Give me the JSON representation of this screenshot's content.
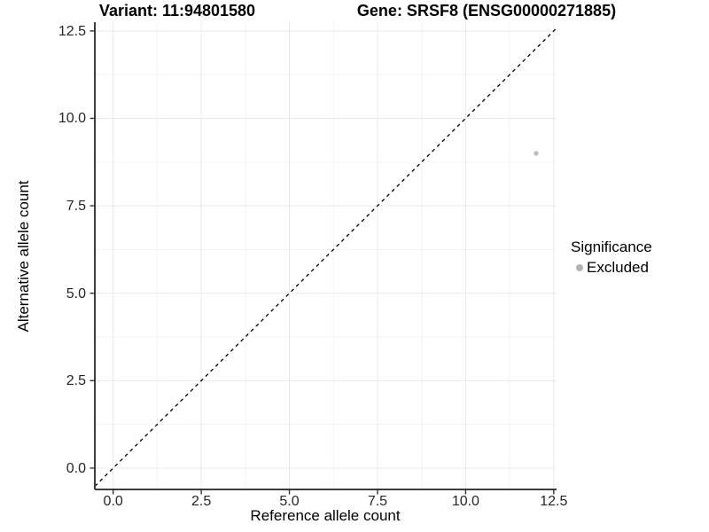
{
  "chart_data": {
    "type": "scatter",
    "titles": {
      "variant": "Variant: 11:94801580",
      "gene": "Gene: SRSF8 (ENSG00000271885)"
    },
    "xlabel": "Reference allele count",
    "ylabel": "Alternative allele count",
    "xlim": [
      -0.52,
      12.58
    ],
    "ylim": [
      -0.61,
      12.75
    ],
    "x_ticks": [
      0.0,
      2.5,
      5.0,
      7.5,
      10.0,
      12.5
    ],
    "y_ticks": [
      0.0,
      2.5,
      5.0,
      7.5,
      10.0,
      12.5
    ],
    "x_tick_labels": [
      "0.0",
      "2.5",
      "5.0",
      "7.5",
      "10.0",
      "12.5"
    ],
    "y_tick_labels": [
      "0.0",
      "2.5",
      "5.0",
      "7.5",
      "10.0",
      "12.5"
    ],
    "minor_ticks": [
      1.25,
      3.75,
      6.25,
      8.75,
      11.25
    ],
    "grid": true,
    "reference_line": {
      "slope": 1,
      "intercept": 0,
      "style": "dashed",
      "color": "#000000"
    },
    "series": [
      {
        "name": "Excluded",
        "color": "#bdbdbd",
        "points": [
          {
            "x": 12,
            "y": 9
          }
        ]
      }
    ],
    "legend": {
      "title": "Significance",
      "position": "right",
      "items": [
        {
          "label": "Excluded",
          "color": "#b3b3b3"
        }
      ]
    },
    "colors": {
      "major_grid": "#e8e8e8",
      "minor_grid": "#f3f3f3",
      "axis_line": "#3c3c3c",
      "tick_mark": "#333333"
    }
  }
}
